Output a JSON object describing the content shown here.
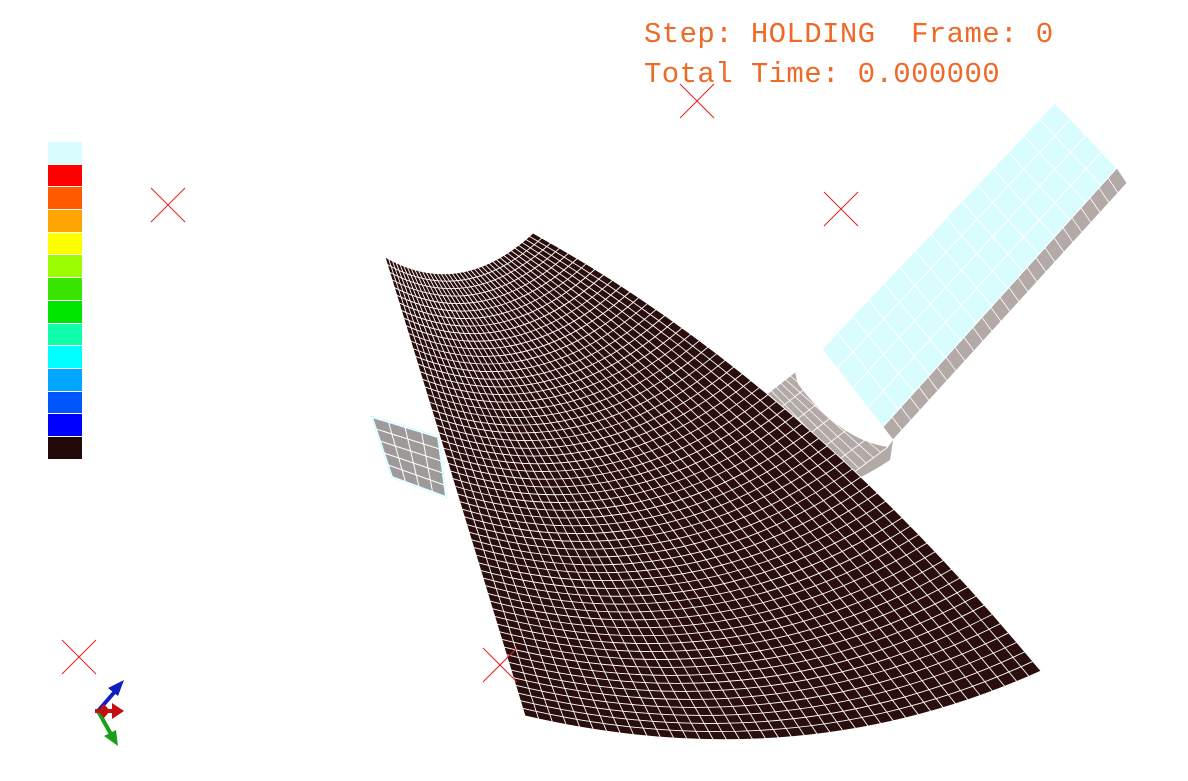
{
  "status": {
    "step_label": "Step:",
    "step_value": "HOLDING",
    "frame_label": "Frame:",
    "frame_value": "0",
    "time_label": "Total Time:",
    "time_value": "0.000000"
  },
  "colors": {
    "status_text": "#ee6a28",
    "mesh_dark": "#2a0d0d",
    "mesh_lines": "#ffffff",
    "holder_cyan": "#d9fdff",
    "holder_side": "#b3aaa8",
    "marker": "#e02020"
  },
  "legend": {
    "colors": [
      "#d9fdff",
      "#ff0000",
      "#ff5a00",
      "#ffa500",
      "#ffff00",
      "#9afd00",
      "#3ae600",
      "#00e600",
      "#11ffaa",
      "#00ffff",
      "#00a6ff",
      "#0055ff",
      "#0000ff",
      "#230808"
    ]
  },
  "triad": {
    "axes": [
      {
        "name": "x",
        "color": "#c01010",
        "icon": "arrow-x-icon"
      },
      {
        "name": "y",
        "color": "#18a018",
        "icon": "arrow-y-icon"
      },
      {
        "name": "z",
        "color": "#1020c0",
        "icon": "arrow-z-icon"
      }
    ]
  }
}
